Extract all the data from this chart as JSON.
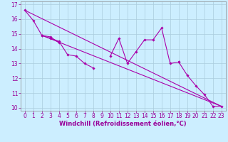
{
  "xlabel": "Windchill (Refroidissement éolien,°C)",
  "bg_color": "#cceeff",
  "grid_color": "#aaccdd",
  "line_color": "#aa00aa",
  "xlim": [
    -0.5,
    23.5
  ],
  "ylim": [
    9.8,
    17.2
  ],
  "yticks": [
    10,
    11,
    12,
    13,
    14,
    15,
    16,
    17
  ],
  "xticks": [
    0,
    1,
    2,
    3,
    4,
    5,
    6,
    7,
    8,
    9,
    10,
    11,
    12,
    13,
    14,
    15,
    16,
    17,
    18,
    19,
    20,
    21,
    22,
    23
  ],
  "c1x": [
    0,
    1,
    2,
    3,
    4,
    5,
    6,
    7,
    8
  ],
  "c1y": [
    16.6,
    15.9,
    14.9,
    14.7,
    14.5,
    13.6,
    13.5,
    13.0,
    12.7
  ],
  "c2x": [
    2,
    3,
    4
  ],
  "c2y": [
    14.9,
    14.8,
    14.4
  ],
  "c3x": [
    10,
    11,
    12,
    13,
    14,
    15,
    16,
    17,
    18
  ],
  "c3y": [
    13.5,
    14.7,
    13.0,
    13.8,
    14.6,
    14.6,
    15.4,
    13.0,
    13.1
  ],
  "c4x": [
    18,
    19,
    20,
    21,
    22,
    23
  ],
  "c4y": [
    13.1,
    12.2,
    11.5,
    10.9,
    10.1,
    10.1
  ],
  "diag1x": [
    0,
    23
  ],
  "diag1y": [
    16.6,
    10.1
  ],
  "diag2x": [
    2,
    23
  ],
  "diag2y": [
    14.9,
    10.1
  ],
  "font_color": "#990099",
  "tick_fontsize": 5.5,
  "label_fontsize": 6.0
}
